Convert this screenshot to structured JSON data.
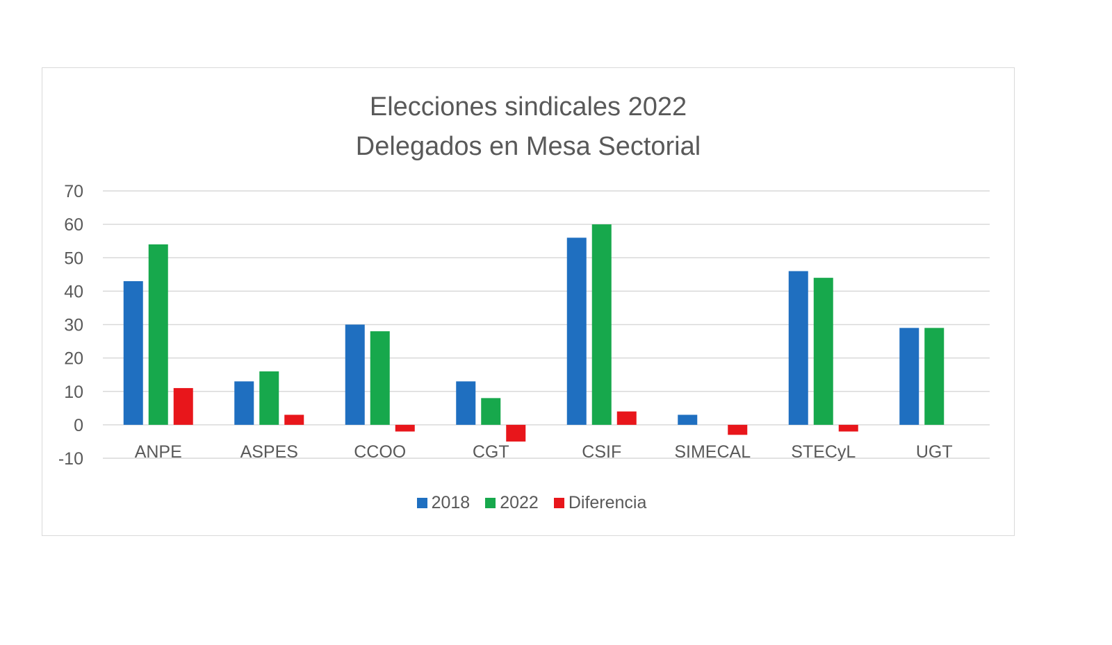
{
  "chart_data": {
    "type": "bar",
    "title": "Elecciones sindicales 2022",
    "subtitle": "Delegados en Mesa Sectorial",
    "categories": [
      "ANPE",
      "ASPES",
      "CCOO",
      "CGT",
      "CSIF",
      "SIMECAL",
      "STECyL",
      "UGT"
    ],
    "series": [
      {
        "name": "2018",
        "color": "#1f6fc0",
        "values": [
          43,
          13,
          30,
          13,
          56,
          3,
          46,
          29
        ]
      },
      {
        "name": "2022",
        "color": "#17a84c",
        "values": [
          54,
          16,
          28,
          8,
          60,
          0,
          44,
          29
        ]
      },
      {
        "name": "Diferencia",
        "color": "#e8161b",
        "values": [
          11,
          3,
          -2,
          -5,
          4,
          -3,
          -2,
          0
        ]
      }
    ],
    "ylim": [
      -10,
      70
    ],
    "yticks": [
      70,
      60,
      50,
      40,
      30,
      20,
      10,
      0,
      -10
    ],
    "grid": true,
    "legend": "bottom",
    "xlabel": "",
    "ylabel": ""
  }
}
